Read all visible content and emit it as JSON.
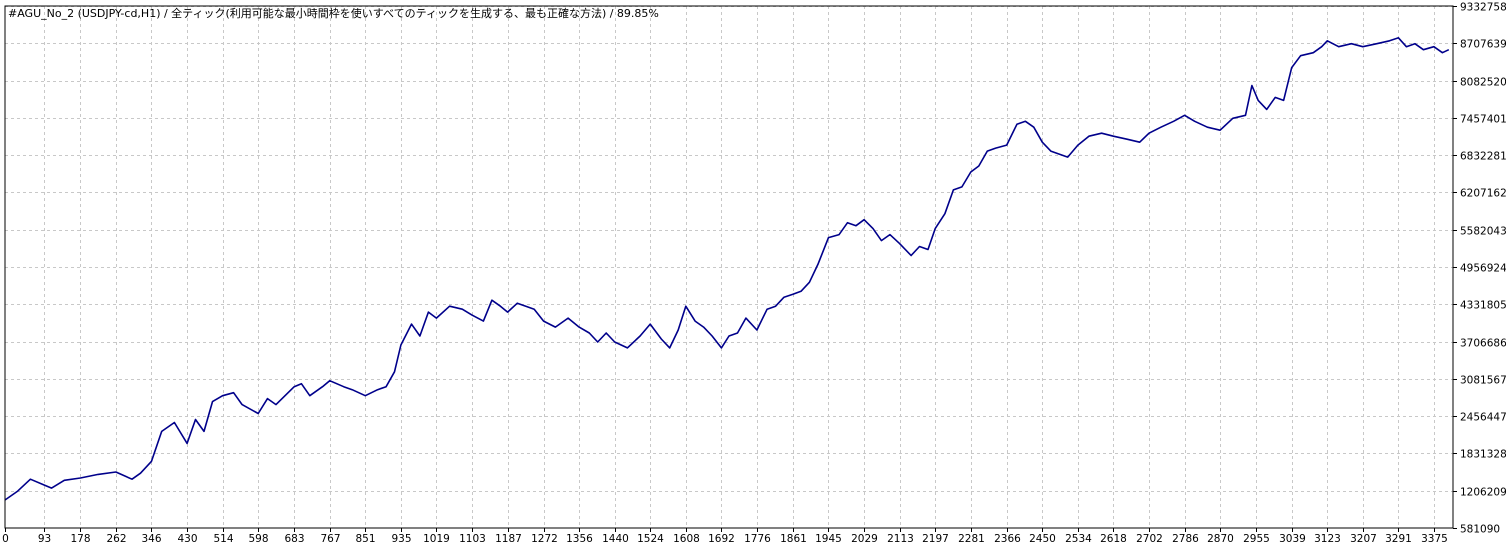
{
  "chart_data": {
    "type": "line",
    "title": "#AGU_No_2 (USDJPY-cd,H1) / 全ティック(利用可能な最小時間枠を使いすべてのティックを生成する、最も正確な方法) / 89.85%",
    "xlabel": "",
    "ylabel": "",
    "grid": true,
    "legend": "none",
    "x_ticks": [
      0,
      93,
      178,
      262,
      346,
      430,
      514,
      598,
      683,
      767,
      851,
      935,
      1019,
      1103,
      1187,
      1272,
      1356,
      1440,
      1524,
      1608,
      1692,
      1776,
      1861,
      1945,
      2029,
      2113,
      2197,
      2281,
      2366,
      2450,
      2534,
      2618,
      2702,
      2786,
      2870,
      2955,
      3039,
      3123,
      3207,
      3291,
      3375
    ],
    "y_ticks": [
      581090,
      1206209,
      1831328,
      2456447,
      3081567,
      3706686,
      4331805,
      4956924,
      5582043,
      6207162,
      6832281,
      7457401,
      8082520,
      8707639,
      9332758
    ],
    "xlim": [
      0,
      3420
    ],
    "ylim": [
      581090,
      9332758
    ],
    "colors": {
      "line": "#00008b",
      "grid": "#c8c8c8",
      "axis": "#000000"
    },
    "series": [
      {
        "x": [
          0,
          30,
          60,
          93,
          110,
          140,
          178,
          220,
          262,
          300,
          320,
          346,
          370,
          400,
          430,
          450,
          470,
          490,
          514,
          540,
          560,
          598,
          620,
          640,
          683,
          700,
          720,
          750,
          767,
          800,
          820,
          851,
          880,
          900,
          920,
          935,
          960,
          980,
          1000,
          1019,
          1050,
          1080,
          1103,
          1130,
          1150,
          1170,
          1187,
          1210,
          1230,
          1250,
          1272,
          1300,
          1330,
          1356,
          1380,
          1400,
          1420,
          1440,
          1470,
          1500,
          1524,
          1550,
          1570,
          1590,
          1608,
          1630,
          1650,
          1670,
          1692,
          1710,
          1730,
          1750,
          1776,
          1800,
          1820,
          1840,
          1861,
          1880,
          1900,
          1920,
          1945,
          1970,
          1990,
          2010,
          2029,
          2050,
          2070,
          2090,
          2113,
          2140,
          2160,
          2180,
          2197,
          2220,
          2240,
          2260,
          2281,
          2300,
          2320,
          2340,
          2366,
          2390,
          2410,
          2430,
          2450,
          2470,
          2490,
          2510,
          2534,
          2560,
          2590,
          2618,
          2650,
          2680,
          2702,
          2730,
          2760,
          2786,
          2810,
          2840,
          2870,
          2900,
          2930,
          2945,
          2960,
          2980,
          3000,
          3020,
          3039,
          3060,
          3090,
          3110,
          3123,
          3150,
          3180,
          3207,
          3240,
          3270,
          3291,
          3310,
          3330,
          3350,
          3375,
          3395,
          3410
        ],
        "y": [
          1050000,
          1200000,
          1400000,
          1300000,
          1250000,
          1380000,
          1420000,
          1480000,
          1520000,
          1400000,
          1500000,
          1700000,
          2200000,
          2350000,
          2000000,
          2400000,
          2200000,
          2700000,
          2800000,
          2850000,
          2650000,
          2500000,
          2750000,
          2650000,
          2950000,
          3000000,
          2800000,
          2950000,
          3050000,
          2950000,
          2900000,
          2800000,
          2900000,
          2950000,
          3200000,
          3650000,
          4000000,
          3800000,
          4200000,
          4100000,
          4300000,
          4250000,
          4150000,
          4050000,
          4400000,
          4300000,
          4200000,
          4350000,
          4300000,
          4250000,
          4050000,
          3950000,
          4100000,
          3950000,
          3850000,
          3700000,
          3850000,
          3700000,
          3600000,
          3800000,
          4000000,
          3750000,
          3600000,
          3900000,
          4300000,
          4050000,
          3950000,
          3800000,
          3600000,
          3800000,
          3850000,
          4100000,
          3900000,
          4250000,
          4300000,
          4450000,
          4500000,
          4550000,
          4700000,
          5000000,
          5450000,
          5500000,
          5700000,
          5650000,
          5750000,
          5600000,
          5400000,
          5500000,
          5350000,
          5150000,
          5300000,
          5250000,
          5600000,
          5850000,
          6250000,
          6300000,
          6550000,
          6650000,
          6900000,
          6950000,
          7000000,
          7350000,
          7400000,
          7300000,
          7050000,
          6900000,
          6850000,
          6800000,
          7000000,
          7150000,
          7200000,
          7150000,
          7100000,
          7050000,
          7200000,
          7300000,
          7400000,
          7500000,
          7400000,
          7300000,
          7250000,
          7450000,
          7500000,
          8000000,
          7750000,
          7600000,
          7800000,
          7750000,
          8300000,
          8500000,
          8550000,
          8650000,
          8750000,
          8650000,
          8700000,
          8650000,
          8700000,
          8750000,
          8800000,
          8650000,
          8700000,
          8600000,
          8650000,
          8550000,
          8600000
        ]
      }
    ]
  }
}
